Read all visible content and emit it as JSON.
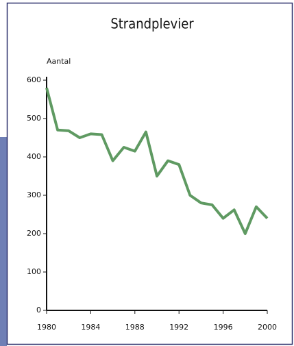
{
  "chart_data": {
    "type": "line",
    "title": "Strandplevier",
    "ylabel": "Aantal",
    "x": [
      1980,
      1981,
      1982,
      1983,
      1984,
      1985,
      1986,
      1987,
      1988,
      1989,
      1990,
      1991,
      1992,
      1993,
      1994,
      1995,
      1996,
      1997,
      1998,
      1999,
      2000
    ],
    "series": [
      {
        "name": "Strandplevier",
        "color": "#5f9a62",
        "values": [
          580,
          470,
          468,
          450,
          460,
          458,
          390,
          425,
          415,
          465,
          350,
          390,
          380,
          300,
          280,
          275,
          240,
          262,
          200,
          270,
          240
        ]
      }
    ],
    "xlim": [
      1980,
      2000
    ],
    "xticks": [
      1980,
      1984,
      1988,
      1992,
      1996,
      2000
    ],
    "ylim": [
      0,
      600
    ],
    "yticks": [
      0,
      100,
      200,
      300,
      400,
      500,
      600
    ]
  }
}
